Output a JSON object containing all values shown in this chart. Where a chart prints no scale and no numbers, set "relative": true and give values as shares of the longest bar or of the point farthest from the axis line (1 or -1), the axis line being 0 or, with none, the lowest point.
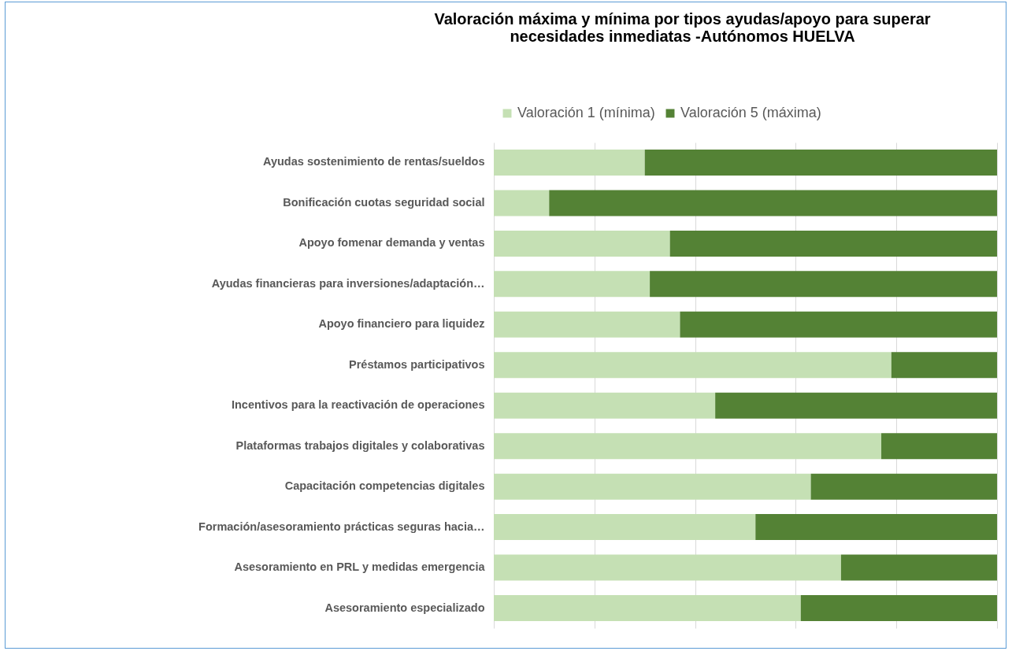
{
  "chart_data": {
    "type": "bar",
    "orientation": "horizontal",
    "stacked": true,
    "relative": true,
    "grid": "x",
    "legend": "top",
    "title": "Valoración máxima y mínima por tipos ayudas/apoyo para superar necesidades inmediatas -Autónomos HUELVA",
    "categories": [
      "Ayudas sostenimiento de rentas/sueldos",
      "Bonificación cuotas seguridad social",
      "Apoyo fomenar demanda y ventas",
      "Ayudas financieras para inversiones/adaptación…",
      "Apoyo financiero para liquidez",
      "Préstamos participativos",
      "Incentivos para la reactivación de operaciones",
      "Plataformas trabajos digitales y colaborativas",
      "Capacitación competencias digitales",
      "Formación/asesoramiento prácticas seguras hacia…",
      "Asesoramiento en PRL y medidas emergencia",
      "Asesoramiento especializado"
    ],
    "series": [
      {
        "name": "Valoración 1 (mínima)",
        "color": "#c5e0b4",
        "values": [
          0.3,
          0.11,
          0.35,
          0.31,
          0.37,
          0.79,
          0.44,
          0.77,
          0.63,
          0.52,
          0.69,
          0.61
        ]
      },
      {
        "name": "Valoración 5 (máxima)",
        "color": "#548235",
        "values": [
          0.7,
          0.89,
          0.65,
          0.69,
          0.63,
          0.21,
          0.56,
          0.23,
          0.37,
          0.48,
          0.31,
          0.39
        ]
      }
    ]
  }
}
